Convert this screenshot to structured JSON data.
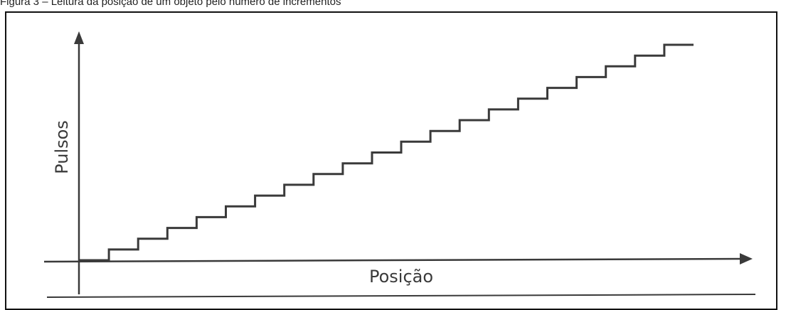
{
  "caption": {
    "text": "Figura 3 – Leitura da posição de um objeto pelo número de incrementos"
  },
  "chart_data": {
    "type": "line",
    "title": "",
    "xlabel": "Posição",
    "ylabel": "Pulsos",
    "grid": false,
    "legend": "none",
    "step_count": 20,
    "line_color": "#3a3a3a",
    "series": [
      {
        "values": [
          0,
          1,
          2,
          3,
          4,
          5,
          6,
          7,
          8,
          9,
          10,
          11,
          12,
          13,
          14,
          15,
          16,
          17,
          18,
          19,
          20
        ]
      }
    ]
  }
}
